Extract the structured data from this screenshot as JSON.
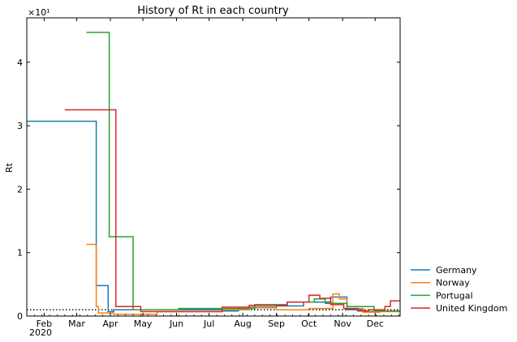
{
  "chart_data": {
    "type": "line",
    "title": "History of Rt in each country",
    "xlabel": "",
    "ylabel": "Rt",
    "y_scale_label": "×10¹",
    "x_year_label": "2020",
    "xlim": [
      20,
      364
    ],
    "ylim": [
      0,
      4.7
    ],
    "y_ticks": [
      0,
      1,
      2,
      3,
      4
    ],
    "y_tick_labels": [
      "0",
      "1",
      "2",
      "3",
      "4"
    ],
    "x_ticks": [
      {
        "day": 36,
        "label": "Feb"
      },
      {
        "day": 66,
        "label": "Mar"
      },
      {
        "day": 97,
        "label": "Apr"
      },
      {
        "day": 127,
        "label": "May"
      },
      {
        "day": 158,
        "label": "Jun"
      },
      {
        "day": 188,
        "label": "Jul"
      },
      {
        "day": 219,
        "label": "Aug"
      },
      {
        "day": 250,
        "label": "Sep"
      },
      {
        "day": 280,
        "label": "Oct"
      },
      {
        "day": 311,
        "label": "Nov"
      },
      {
        "day": 341,
        "label": "Dec"
      }
    ],
    "reference_line": {
      "y": 0.1,
      "style": "dotted"
    },
    "grid": false,
    "legend": "outside-right-bottom",
    "series": [
      {
        "name": "Germany",
        "color": "#1f77b4",
        "x": [
          20,
          84,
          84,
          95,
          95,
          100,
          100,
          200,
          200,
          215,
          215,
          225,
          225,
          250,
          250,
          275,
          275,
          300,
          300,
          315,
          315,
          330,
          330,
          345,
          345,
          364
        ],
        "y": [
          3.07,
          3.07,
          0.48,
          0.48,
          0.07,
          0.07,
          0.1,
          0.1,
          0.08,
          0.08,
          0.12,
          0.12,
          0.14,
          0.14,
          0.16,
          0.16,
          0.22,
          0.22,
          0.3,
          0.3,
          0.1,
          0.1,
          0.07,
          0.07,
          0.08,
          0.08
        ]
      },
      {
        "name": "Norway",
        "color": "#ff7f0e",
        "x": [
          75,
          84,
          84,
          86,
          86,
          100,
          100,
          140,
          140,
          200,
          200,
          225,
          225,
          250,
          250,
          280,
          280,
          302,
          302,
          308,
          308,
          315,
          315,
          330,
          330,
          345,
          345,
          364
        ],
        "y": [
          1.13,
          1.13,
          0.15,
          0.15,
          0.05,
          0.05,
          0.03,
          0.03,
          0.07,
          0.07,
          0.1,
          0.1,
          0.13,
          0.13,
          0.1,
          0.1,
          0.12,
          0.12,
          0.35,
          0.35,
          0.27,
          0.27,
          0.12,
          0.12,
          0.06,
          0.06,
          0.07,
          0.07
        ]
      },
      {
        "name": "Portugal",
        "color": "#2ca02c",
        "x": [
          75,
          96,
          96,
          100,
          100,
          118,
          118,
          125,
          125,
          160,
          160,
          230,
          230,
          260,
          260,
          285,
          285,
          295,
          295,
          315,
          315,
          340,
          340,
          364
        ],
        "y": [
          4.47,
          4.47,
          1.25,
          1.25,
          1.25,
          1.25,
          0.1,
          0.1,
          0.1,
          0.1,
          0.12,
          0.12,
          0.18,
          0.18,
          0.22,
          0.22,
          0.27,
          0.27,
          0.2,
          0.2,
          0.15,
          0.15,
          0.08,
          0.08
        ]
      },
      {
        "name": "United Kingdom",
        "color": "#d62728",
        "x": [
          55,
          102,
          102,
          125,
          125,
          200,
          200,
          225,
          225,
          260,
          260,
          280,
          280,
          290,
          290,
          300,
          300,
          312,
          312,
          325,
          325,
          335,
          335,
          350,
          350,
          355,
          355,
          364
        ],
        "y": [
          3.25,
          3.25,
          0.15,
          0.15,
          0.07,
          0.07,
          0.14,
          0.14,
          0.17,
          0.17,
          0.22,
          0.22,
          0.33,
          0.33,
          0.28,
          0.28,
          0.18,
          0.18,
          0.12,
          0.12,
          0.08,
          0.08,
          0.1,
          0.1,
          0.15,
          0.15,
          0.24,
          0.24
        ]
      }
    ]
  }
}
